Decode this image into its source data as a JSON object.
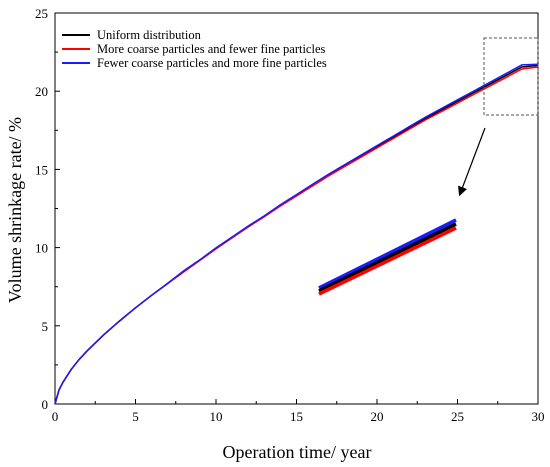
{
  "chart_data": {
    "type": "line",
    "xlabel": "Operation time/ year",
    "ylabel": "Volume shrinkage rate/ %",
    "xlim": [
      0,
      30
    ],
    "ylim": [
      0,
      25
    ],
    "xticks": [
      "0",
      "5",
      "10",
      "15",
      "20",
      "25",
      "30"
    ],
    "yticks": [
      "0",
      "5",
      "10",
      "15",
      "20",
      "25"
    ],
    "grid": false,
    "legend_position": "top-left",
    "series": [
      {
        "name": "Uniform distribution",
        "color": "#000000",
        "x": [
          0,
          0.25,
          0.5,
          1,
          1.5,
          2,
          3,
          4,
          5,
          6,
          7,
          8,
          9,
          10,
          11,
          12,
          13,
          14,
          15,
          16,
          17,
          18,
          19,
          20,
          21,
          22,
          23,
          24,
          25,
          26,
          27,
          28,
          29,
          30
        ],
        "y": [
          0,
          0.9,
          1.4,
          2.2,
          2.85,
          3.4,
          4.4,
          5.3,
          6.15,
          6.95,
          7.7,
          8.5,
          9.2,
          9.95,
          10.65,
          11.35,
          12.0,
          12.7,
          13.35,
          14.0,
          14.65,
          15.25,
          15.85,
          16.45,
          17.05,
          17.65,
          18.25,
          18.8,
          19.35,
          19.9,
          20.45,
          21.0,
          21.55,
          21.65
        ]
      },
      {
        "name": "More coarse particles and fewer fine particles",
        "color": "#ff0000",
        "x": [
          0,
          0.25,
          0.5,
          1,
          1.5,
          2,
          3,
          4,
          5,
          6,
          7,
          8,
          9,
          10,
          11,
          12,
          13,
          14,
          15,
          16,
          17,
          18,
          19,
          20,
          21,
          22,
          23,
          24,
          25,
          26,
          27,
          28,
          29,
          30
        ],
        "y": [
          0,
          0.9,
          1.4,
          2.2,
          2.85,
          3.4,
          4.4,
          5.3,
          6.15,
          6.95,
          7.7,
          8.45,
          9.18,
          9.92,
          10.62,
          11.32,
          11.97,
          12.66,
          13.3,
          13.95,
          14.59,
          15.19,
          15.78,
          16.38,
          16.97,
          17.57,
          18.16,
          18.7,
          19.24,
          19.79,
          20.33,
          20.87,
          21.42,
          21.55
        ]
      },
      {
        "name": "Fewer coarse particles and more fine particles",
        "color": "#1a1aff",
        "x": [
          0,
          0.25,
          0.5,
          1,
          1.5,
          2,
          3,
          4,
          5,
          6,
          7,
          8,
          9,
          10,
          11,
          12,
          13,
          14,
          15,
          16,
          17,
          18,
          19,
          20,
          21,
          22,
          23,
          24,
          25,
          26,
          27,
          28,
          29,
          30
        ],
        "y": [
          0,
          0.9,
          1.4,
          2.2,
          2.85,
          3.4,
          4.4,
          5.3,
          6.15,
          6.95,
          7.72,
          8.52,
          9.22,
          9.98,
          10.68,
          11.38,
          12.03,
          12.74,
          13.39,
          14.05,
          14.7,
          15.3,
          15.91,
          16.52,
          17.12,
          17.73,
          18.33,
          18.89,
          19.45,
          20.0,
          20.56,
          21.12,
          21.68,
          21.72
        ]
      }
    ]
  }
}
